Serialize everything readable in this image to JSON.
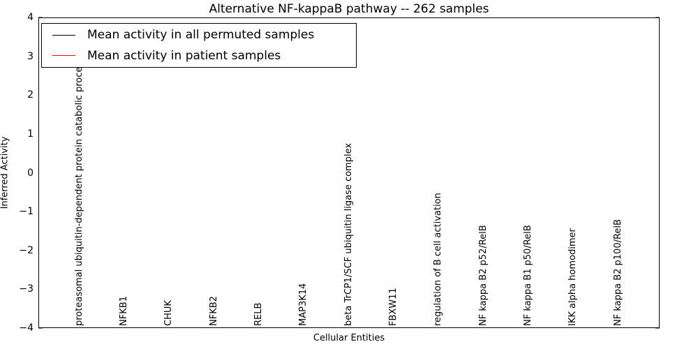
{
  "figure": {
    "title": "Alternative NF-kappaB pathway -- 262 samples",
    "xlabel": "Cellular Entities",
    "ylabel": "Inferred Activity"
  },
  "legend": {
    "entries": [
      {
        "label": "Mean activity in all permuted samples",
        "color": "#000000"
      },
      {
        "label": "Mean activity in patient samples",
        "color": "#ff0000"
      }
    ]
  },
  "chart_data": {
    "type": "line",
    "title": "Alternative NF-kappaB pathway -- 262 samples",
    "subtitle": "",
    "xlabel": "Cellular Entities",
    "ylabel": "Inferred Activity",
    "ylim": [
      -4,
      4
    ],
    "ytick_values": [
      4,
      3,
      2,
      1,
      0,
      -1,
      -2,
      -3,
      -4
    ],
    "ytick_labels": [
      "4",
      "3",
      "2",
      "1",
      "0",
      "−1",
      "−2",
      "−3",
      "−4"
    ],
    "grid": false,
    "legend_position": "upper left",
    "samples_count": 262,
    "categories": [
      "proteasomal ubiquitin-dependent protein catabolic process",
      "NFKB1",
      "CHUK",
      "NFKB2",
      "RELB",
      "MAP3K14",
      "beta TrCP1/SCF ubiquitin ligase complex",
      "FBXW11",
      "regulation of B cell activation",
      "NF kappa B2 p52/RelB",
      "NF kappa B1 p50/RelB",
      "IKK alpha homodimer",
      "NF kappa B2 p100/RelB"
    ],
    "series": [
      {
        "name": "Mean activity in all permuted samples",
        "color": "#000000",
        "style": "dotted",
        "values": [
          0,
          0,
          0,
          0,
          0,
          0,
          0,
          0,
          0,
          0,
          0,
          0.005,
          0.025
        ]
      },
      {
        "name": "Mean activity in patient samples",
        "color": "#ff0000",
        "style": "solid",
        "values": [
          -0.05,
          0.03,
          0.03,
          0.03,
          0.03,
          0.03,
          0.03,
          0.03,
          0.03,
          0.035,
          0.045,
          0.06,
          0.09
        ]
      }
    ],
    "bands": [
      {
        "name": "permuted-range-outer",
        "color": "#ebebeb",
        "upper": [
          0.1,
          0.13,
          0.13,
          0.13,
          0.13,
          0.13,
          0.13,
          0.13,
          0.13,
          0.13,
          0.14,
          0.16,
          0.21
        ],
        "lower": [
          -0.19,
          -0.16,
          -0.15,
          -0.15,
          -0.15,
          -0.15,
          -0.15,
          -0.15,
          -0.15,
          -0.15,
          -0.15,
          -0.16,
          -0.16
        ]
      },
      {
        "name": "permuted-range-inner",
        "color": "#e0e0e0",
        "upper": [
          0.04,
          0.08,
          0.08,
          0.08,
          0.08,
          0.08,
          0.08,
          0.08,
          0.08,
          0.08,
          0.09,
          0.11,
          0.15
        ],
        "lower": [
          -0.13,
          -0.11,
          -0.1,
          -0.1,
          -0.1,
          -0.1,
          -0.1,
          -0.1,
          -0.1,
          -0.1,
          -0.1,
          -0.11,
          -0.11
        ]
      }
    ]
  }
}
